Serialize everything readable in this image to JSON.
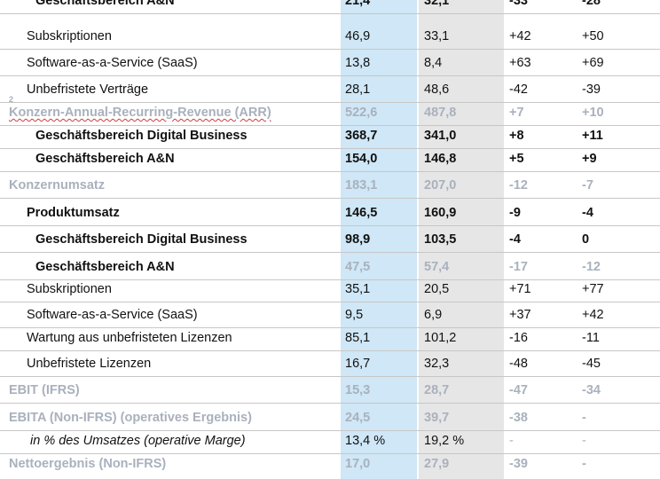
{
  "table": {
    "rows": [
      {
        "label": "Geschäftsbereich A&N",
        "c1": "21,4",
        "c2": "32,1",
        "c3": "-33",
        "c4": "-28"
      },
      {
        "label": "Subskriptionen",
        "c1": "46,9",
        "c2": "33,1",
        "c3": "+42",
        "c4": "+50"
      },
      {
        "label": "Software-as-a-Service (SaaS)",
        "c1": "13,8",
        "c2": "8,4",
        "c3": "+63",
        "c4": "+69"
      },
      {
        "label": "Unbefristete Verträge",
        "c1": "28,1",
        "c2": "48,6",
        "c3": "-42",
        "c4": "-39"
      },
      {
        "label": "Konzern-Annual-Recurring-Revenue (ARR)",
        "sup": "2",
        "c1": "522,6",
        "c2": "487,8",
        "c3": "+7",
        "c4": "+10"
      },
      {
        "label": "Geschäftsbereich Digital Business",
        "c1": "368,7",
        "c2": "341,0",
        "c3": "+8",
        "c4": "+11"
      },
      {
        "label": "Geschäftsbereich A&N",
        "c1": "154,0",
        "c2": "146,8",
        "c3": "+5",
        "c4": "+9"
      },
      {
        "label": "Konzernumsatz",
        "c1": "183,1",
        "c2": "207,0",
        "c3": "-12",
        "c4": "-7"
      },
      {
        "label": "Produktumsatz",
        "c1": "146,5",
        "c2": "160,9",
        "c3": "-9",
        "c4": "-4"
      },
      {
        "label": "Geschäftsbereich Digital Business",
        "c1": "98,9",
        "c2": "103,5",
        "c3": "-4",
        "c4": "0"
      },
      {
        "label": "Geschäftsbereich A&N",
        "c1": "47,5",
        "c2": "57,4",
        "c3": "-17",
        "c4": "-12"
      },
      {
        "label": "Subskriptionen",
        "c1": "35,1",
        "c2": "20,5",
        "c3": "+71",
        "c4": "+77"
      },
      {
        "label": "Software-as-a-Service (SaaS)",
        "c1": "9,5",
        "c2": "6,9",
        "c3": "+37",
        "c4": "+42"
      },
      {
        "label": "Wartung aus unbefristeten Lizenzen",
        "c1": "85,1",
        "c2": "101,2",
        "c3": "-16",
        "c4": "-11"
      },
      {
        "label": "Unbefristete Lizenzen",
        "c1": "16,7",
        "c2": "32,3",
        "c3": "-48",
        "c4": "-45"
      },
      {
        "label": "EBIT (IFRS)",
        "c1": "15,3",
        "c2": "28,7",
        "c3": "-47",
        "c4": "-34"
      },
      {
        "label": "EBITA (Non-IFRS) (operatives Ergebnis)",
        "c1": "24,5",
        "c2": "39,7",
        "c3": "-38",
        "c4": "-"
      },
      {
        "label": "in % des Umsatzes (operative Marge)",
        "c1": "13,4 %",
        "c2": "19,2 %",
        "c3": "-",
        "c4": "-"
      },
      {
        "label": "Nettoergebnis (Non-IFRS)",
        "c1": "17,0",
        "c2": "27,9",
        "c3": "-39",
        "c4": "-"
      }
    ]
  },
  "colors": {
    "highlight_blue": "#cfe7f6",
    "highlight_grey": "#e6e6e6",
    "muted_text": "#a9b1bd"
  }
}
